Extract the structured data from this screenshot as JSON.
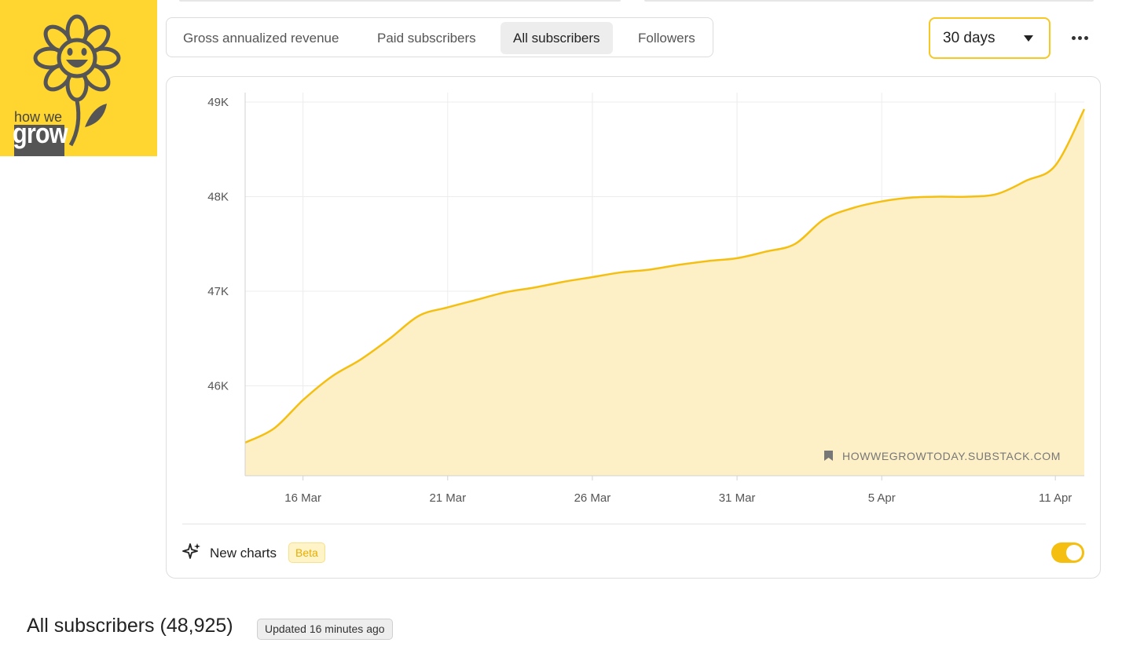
{
  "brand": {
    "logo_text_top": "how we",
    "logo_text_bottom": "grow",
    "logo_color": "#ffd530"
  },
  "tabs": [
    {
      "label": "Gross annualized revenue",
      "active": false
    },
    {
      "label": "Paid subscribers",
      "active": false
    },
    {
      "label": "All subscribers",
      "active": true
    },
    {
      "label": "Followers",
      "active": false
    }
  ],
  "range": {
    "selected": "30 days"
  },
  "more_icon": "ellipsis-icon",
  "accent_color": "#f5bf12",
  "chart_data": {
    "type": "area",
    "y_ticks": [
      "46K",
      "47K",
      "48K",
      "49K"
    ],
    "x_ticks": [
      "16 Mar",
      "21 Mar",
      "26 Mar",
      "31 Mar",
      "5 Apr",
      "11 Apr"
    ],
    "ylim": [
      45050,
      49100
    ],
    "x": [
      "2025-03-14",
      "2025-03-15",
      "2025-03-16",
      "2025-03-17",
      "2025-03-18",
      "2025-03-19",
      "2025-03-20",
      "2025-03-21",
      "2025-03-22",
      "2025-03-23",
      "2025-03-24",
      "2025-03-25",
      "2025-03-26",
      "2025-03-27",
      "2025-03-28",
      "2025-03-29",
      "2025-03-30",
      "2025-03-31",
      "2025-04-01",
      "2025-04-02",
      "2025-04-03",
      "2025-04-04",
      "2025-04-05",
      "2025-04-06",
      "2025-04-07",
      "2025-04-08",
      "2025-04-09",
      "2025-04-10",
      "2025-04-11",
      "2025-04-12"
    ],
    "values": [
      45400,
      45550,
      45850,
      46100,
      46280,
      46500,
      46740,
      46830,
      46910,
      46990,
      47040,
      47100,
      47150,
      47200,
      47230,
      47280,
      47320,
      47350,
      47420,
      47500,
      47760,
      47880,
      47950,
      47990,
      48000,
      48000,
      48030,
      48170,
      48330,
      48925
    ],
    "watermark": "HOWWEGROWTODAY.SUBSTACK.COM",
    "line_color": "#f5bf12",
    "fill_color": "#fdefc6",
    "grid": true
  },
  "footer_controls": {
    "new_charts_label": "New charts",
    "beta_label": "Beta",
    "toggle_on": true
  },
  "summary": {
    "title": "All subscribers (48,925)",
    "updated": "Updated 16 minutes ago"
  }
}
